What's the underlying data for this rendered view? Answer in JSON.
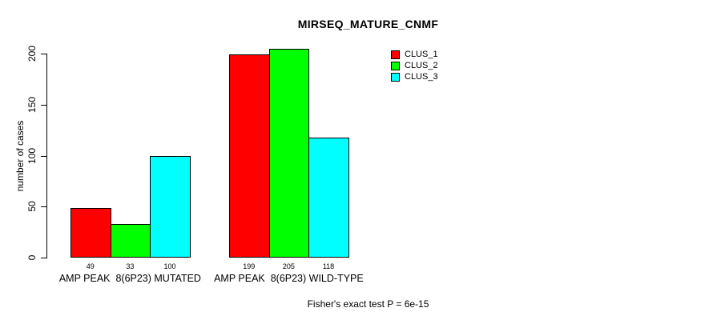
{
  "title": "MIRSEQ_MATURE_CNMF",
  "y_axis": {
    "label": "number of cases",
    "ticks": [
      0,
      50,
      100,
      150,
      200
    ],
    "lim": [
      0,
      200
    ]
  },
  "caption": "Fisher's exact test P = 6e-15",
  "legend": {
    "position": "top-right",
    "entries": [
      {
        "label": "CLUS_1",
        "color": "#ff0000"
      },
      {
        "label": "CLUS_2",
        "color": "#00ff00"
      },
      {
        "label": "CLUS_3",
        "color": "#00ffff"
      }
    ]
  },
  "chart_data": {
    "type": "bar",
    "title": "MIRSEQ_MATURE_CNMF",
    "xlabel": "",
    "ylabel": "number of cases",
    "ylim": [
      0,
      200
    ],
    "yticks": [
      0,
      50,
      100,
      150,
      200
    ],
    "categories": [
      "AMP PEAK  8(6P23) MUTATED",
      "AMP PEAK  8(6P23) WILD-TYPE"
    ],
    "series": [
      {
        "name": "CLUS_1",
        "color": "#ff0000",
        "values": [
          49,
          199
        ]
      },
      {
        "name": "CLUS_2",
        "color": "#00ff00",
        "values": [
          33,
          205
        ]
      },
      {
        "name": "CLUS_3",
        "color": "#00ffff",
        "values": [
          100,
          118
        ]
      }
    ],
    "group_totals_shown_as_bar_labels": [
      [
        49,
        33,
        100
      ],
      [
        199,
        205,
        118
      ]
    ],
    "bar_value_labels": true,
    "annotation": "Fisher's exact test P = 6e-15",
    "legend_position": "top-right",
    "grid": false,
    "background": "#ffffff"
  }
}
